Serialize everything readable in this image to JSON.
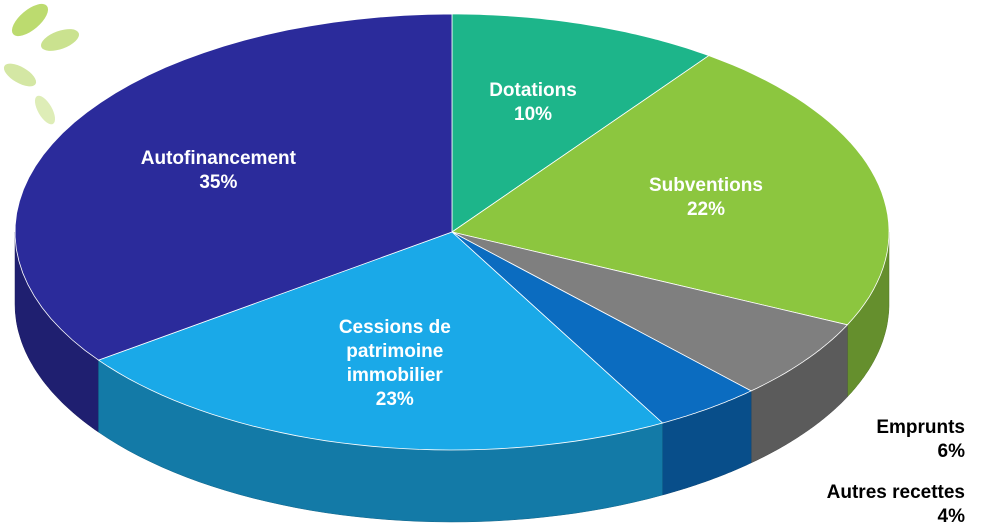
{
  "chart_data": {
    "type": "pie3d",
    "categories": [
      "Dotations",
      "Subventions",
      "Emprunts",
      "Autres recettes",
      "Cessions de patrimoine immobilier",
      "Autofinancement"
    ],
    "values": [
      10,
      22,
      6,
      4,
      23,
      35
    ],
    "value_labels": [
      "10%",
      "22%",
      "6%",
      "4%",
      "23%",
      "35%"
    ],
    "colors": [
      "#1db58a",
      "#8cc63f",
      "#7f7f7f",
      "#0b6cc0",
      "#1aa9e8",
      "#2b2b9b"
    ]
  }
}
